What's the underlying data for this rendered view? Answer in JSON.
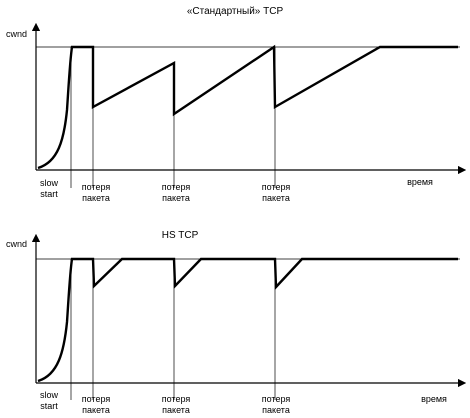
{
  "colors": {
    "line": "#000000",
    "background": "#ffffff"
  },
  "labels": {
    "slow_start_line1": "slow",
    "slow_start_line2": "start",
    "loss_line1": "потеря",
    "loss_line2": "пакета",
    "x_axis": "время",
    "y_axis": "cwnd"
  },
  "panels": [
    {
      "title": "«Стандартный» TCP",
      "variant": "standard",
      "loss_markers": 3
    },
    {
      "title": "HS TCP",
      "variant": "highspeed",
      "loss_markers": 3
    }
  ]
}
